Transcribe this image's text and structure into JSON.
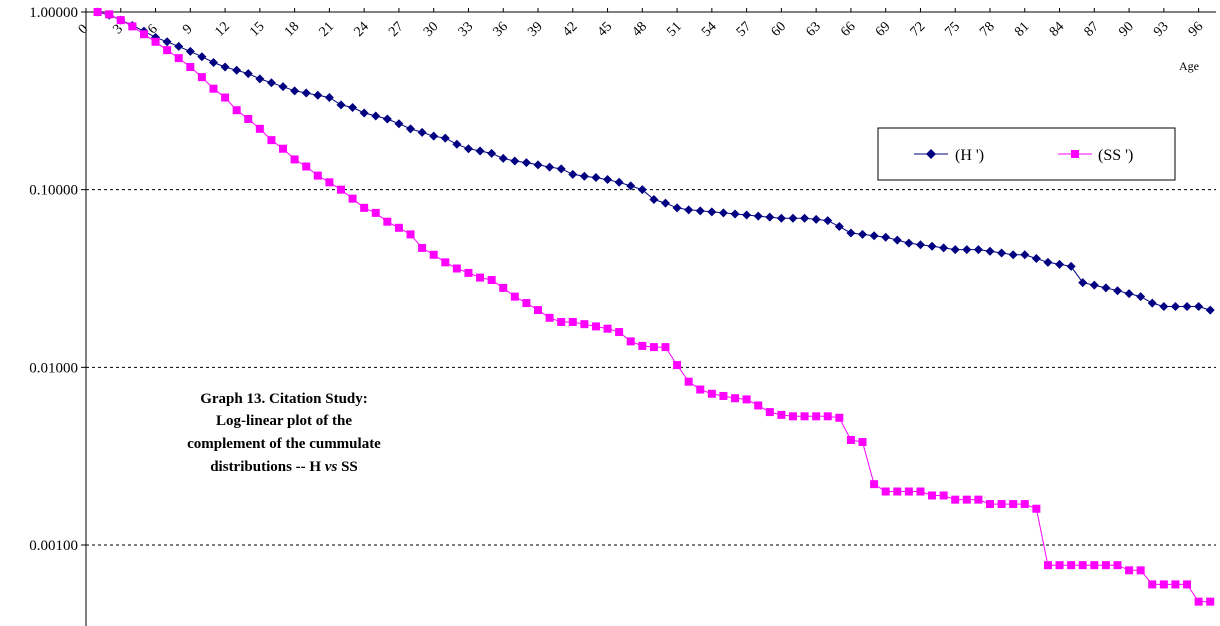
{
  "chart_data": {
    "type": "line",
    "y_scale": "log",
    "ylim": [
      0.00035,
      1.0
    ],
    "y_ticks": [
      {
        "value": 1.0,
        "label": "1.00000"
      },
      {
        "value": 0.1,
        "label": "0.10000"
      },
      {
        "value": 0.01,
        "label": "0.01000"
      },
      {
        "value": 0.001,
        "label": "0.00100"
      }
    ],
    "xlim": [
      0,
      97.5
    ],
    "x_ticks": [
      0,
      3,
      6,
      9,
      12,
      15,
      18,
      21,
      24,
      27,
      30,
      33,
      36,
      39,
      42,
      45,
      48,
      51,
      54,
      57,
      60,
      63,
      66,
      69,
      72,
      75,
      78,
      81,
      84,
      87,
      90,
      93,
      96
    ],
    "x_tick_labels": [
      "0",
      "3",
      "6",
      "9",
      "12",
      "15",
      "18",
      "21",
      "24",
      "27",
      "30",
      "33",
      "36",
      "39",
      "42",
      "45",
      "48",
      "51",
      "54",
      "57",
      "60",
      "63",
      "66",
      "69",
      "72",
      "75",
      "78",
      "81",
      "84",
      "87",
      "90",
      "93",
      "96"
    ],
    "xlabel": "Age",
    "grid": "horizontal dashed",
    "legend_position": "top-right",
    "annotation": {
      "lines": [
        "Graph 13.  Citation Study:",
        "Log-linear plot of the",
        "complement of the cummulate",
        "distributions -- H vs  SS"
      ]
    },
    "series": [
      {
        "name": "(H ')",
        "color": "#000080",
        "marker": "diamond",
        "x_start": 1,
        "values": [
          1.0,
          0.96,
          0.9,
          0.84,
          0.78,
          0.72,
          0.68,
          0.64,
          0.6,
          0.56,
          0.52,
          0.49,
          0.47,
          0.45,
          0.42,
          0.4,
          0.38,
          0.36,
          0.35,
          0.34,
          0.33,
          0.3,
          0.29,
          0.27,
          0.26,
          0.25,
          0.235,
          0.22,
          0.21,
          0.2,
          0.195,
          0.18,
          0.17,
          0.165,
          0.16,
          0.15,
          0.145,
          0.142,
          0.138,
          0.134,
          0.131,
          0.122,
          0.119,
          0.117,
          0.114,
          0.11,
          0.105,
          0.1,
          0.088,
          0.084,
          0.079,
          0.077,
          0.076,
          0.075,
          0.074,
          0.073,
          0.072,
          0.071,
          0.07,
          0.069,
          0.069,
          0.069,
          0.068,
          0.067,
          0.062,
          0.057,
          0.056,
          0.055,
          0.054,
          0.052,
          0.05,
          0.049,
          0.048,
          0.047,
          0.046,
          0.046,
          0.046,
          0.045,
          0.044,
          0.043,
          0.043,
          0.041,
          0.039,
          0.038,
          0.037,
          0.03,
          0.029,
          0.028,
          0.027,
          0.026,
          0.025,
          0.023,
          0.022,
          0.022,
          0.022,
          0.022,
          0.021
        ]
      },
      {
        "name": "(SS ')",
        "color": "#ff00ff",
        "marker": "square",
        "x_start": 1,
        "values": [
          1.0,
          0.97,
          0.9,
          0.83,
          0.75,
          0.68,
          0.61,
          0.55,
          0.49,
          0.43,
          0.37,
          0.33,
          0.28,
          0.25,
          0.22,
          0.19,
          0.17,
          0.148,
          0.135,
          0.12,
          0.11,
          0.1,
          0.089,
          0.079,
          0.074,
          0.066,
          0.061,
          0.056,
          0.047,
          0.043,
          0.039,
          0.036,
          0.034,
          0.032,
          0.031,
          0.028,
          0.025,
          0.023,
          0.021,
          0.019,
          0.018,
          0.018,
          0.0175,
          0.017,
          0.0165,
          0.0158,
          0.014,
          0.0132,
          0.013,
          0.013,
          0.0103,
          0.0083,
          0.0075,
          0.0071,
          0.0069,
          0.0067,
          0.0066,
          0.0061,
          0.0056,
          0.0054,
          0.0053,
          0.0053,
          0.0053,
          0.0053,
          0.0052,
          0.0039,
          0.0038,
          0.0022,
          0.002,
          0.002,
          0.002,
          0.002,
          0.0019,
          0.0019,
          0.0018,
          0.0018,
          0.0018,
          0.0017,
          0.0017,
          0.0017,
          0.0017,
          0.0016,
          0.00077,
          0.00077,
          0.00077,
          0.00077,
          0.00077,
          0.00077,
          0.00077,
          0.00072,
          0.00072,
          0.0006,
          0.0006,
          0.0006,
          0.0006,
          0.00048,
          0.00048
        ]
      }
    ]
  }
}
